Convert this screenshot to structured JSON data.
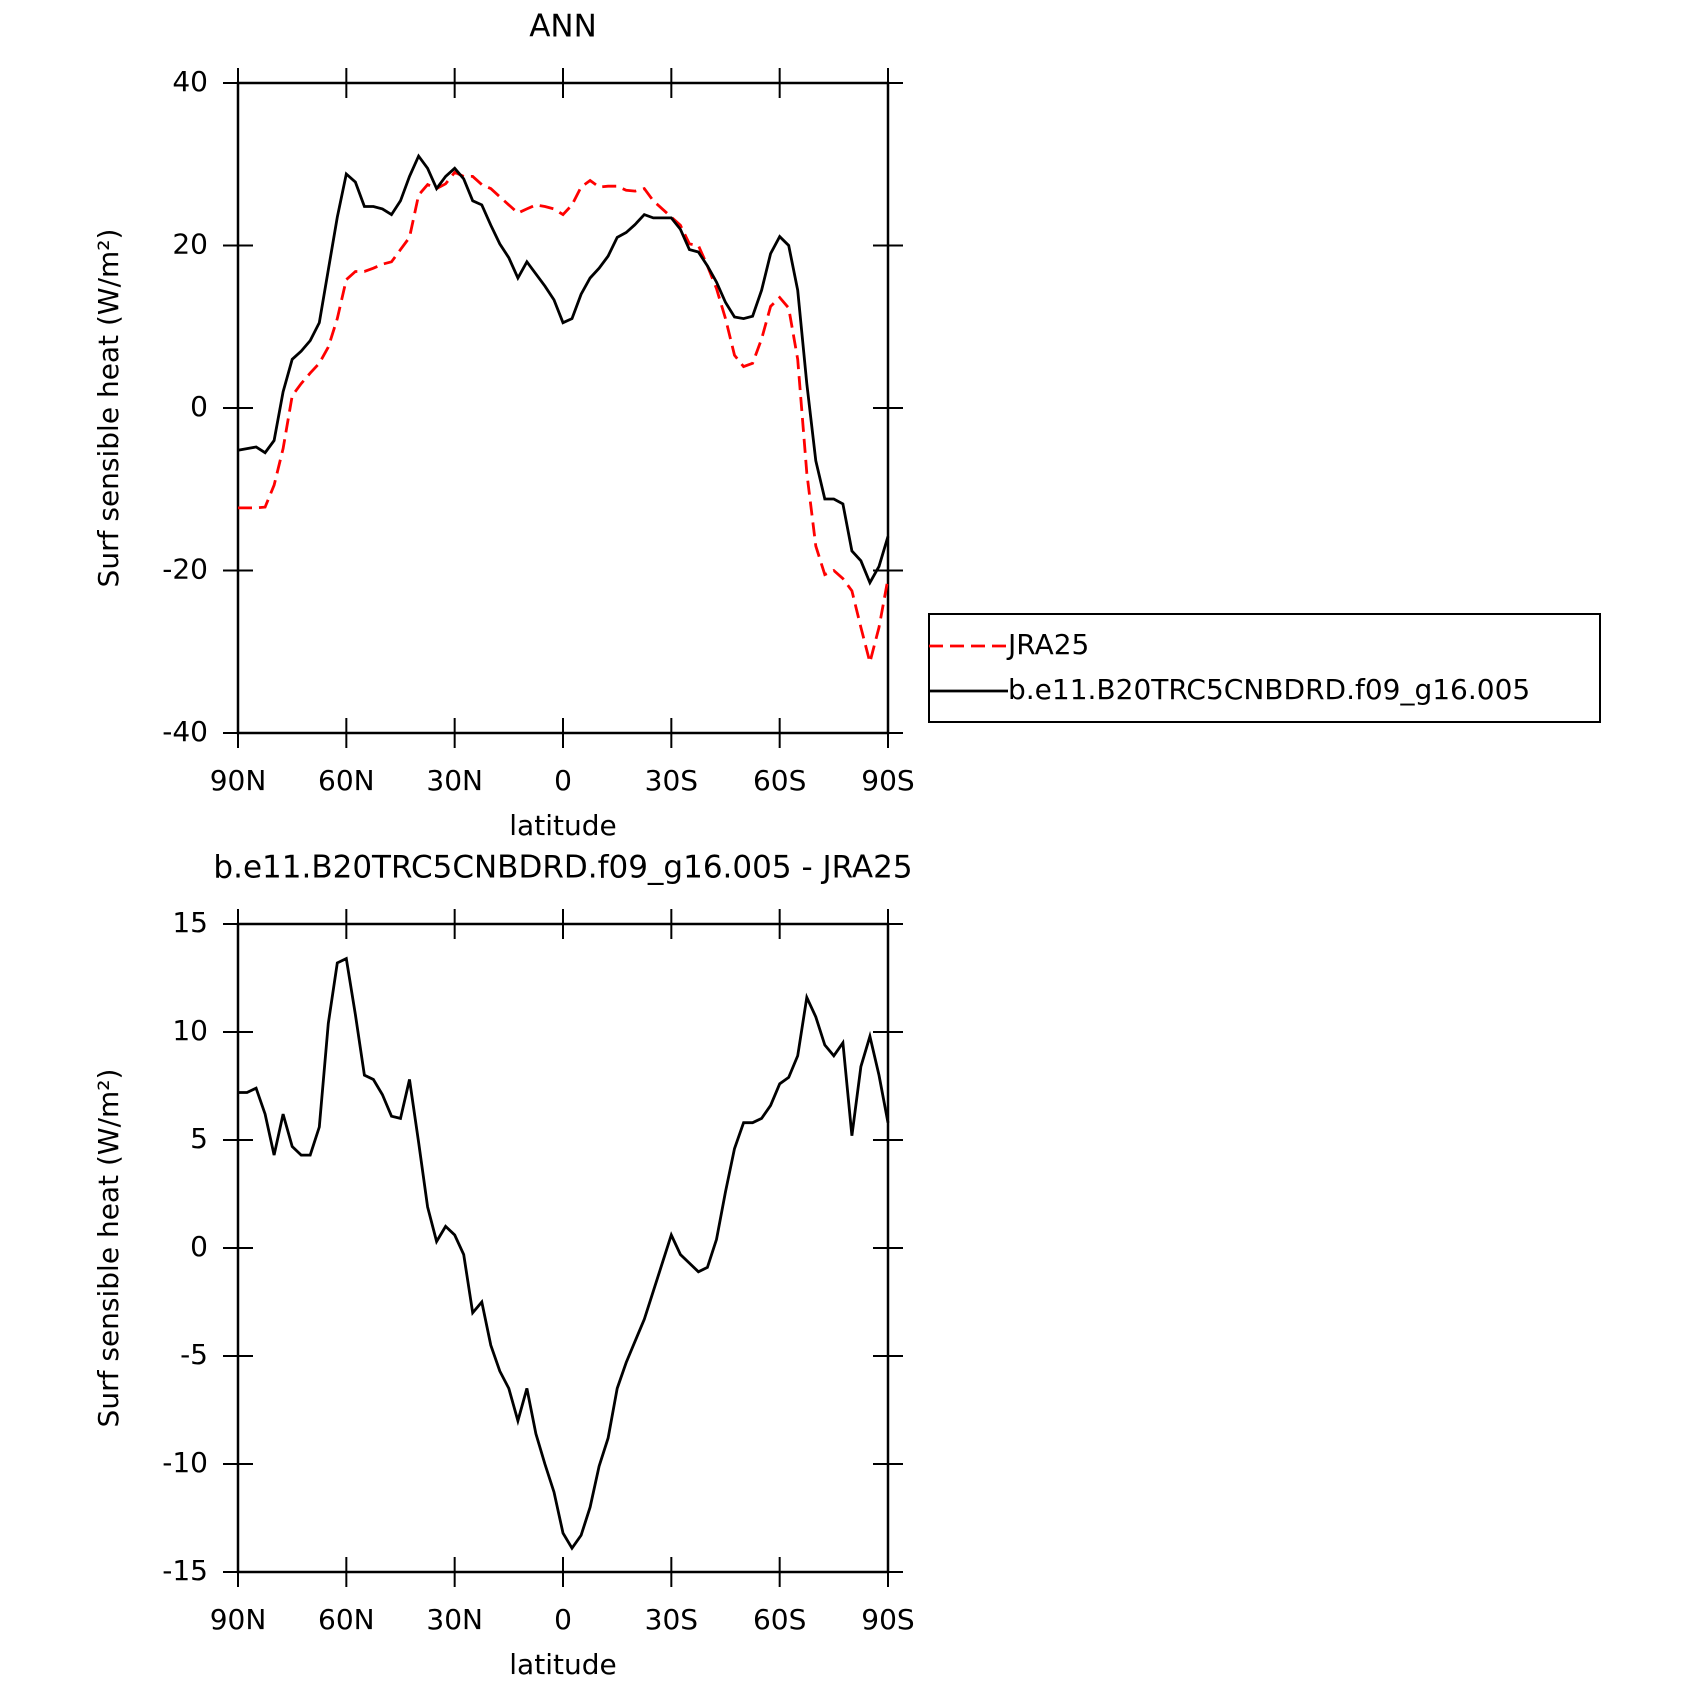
{
  "chart_data": [
    {
      "type": "line",
      "title": "ANN",
      "xlabel": "latitude",
      "ylabel": "Surf sensible heat (W/m²)",
      "x": [
        90,
        87.5,
        85,
        82.5,
        80,
        77.5,
        75,
        72.5,
        70,
        67.5,
        65,
        62.5,
        60,
        57.5,
        55,
        52.5,
        50,
        47.5,
        45,
        42.5,
        40,
        37.5,
        35,
        32.5,
        30,
        27.5,
        25,
        22.5,
        20,
        17.5,
        15,
        12.5,
        10,
        7.5,
        5,
        2.5,
        0,
        -2.5,
        -5,
        -7.5,
        -10,
        -12.5,
        -15,
        -17.5,
        -20,
        -22.5,
        -25,
        -27.5,
        -30,
        -32.5,
        -35,
        -37.5,
        -40,
        -42.5,
        -45,
        -47.5,
        -50,
        -52.5,
        -55,
        -57.5,
        -60,
        -62.5,
        -65,
        -67.5,
        -70,
        -72.5,
        -75,
        -77.5,
        -80,
        -82.5,
        -85,
        -87.5,
        -90
      ],
      "series": [
        {
          "name": "JRA25",
          "color": "#ff0000",
          "dashed": true,
          "values": [
            -12.3,
            -12.3,
            -12.3,
            -12.2,
            -9.5,
            -5,
            1.5,
            3,
            4.3,
            5.5,
            7.5,
            11,
            15.8,
            16.8,
            16.8,
            17.2,
            17.7,
            18,
            19.5,
            21,
            26.2,
            27.5,
            27,
            27.6,
            29,
            28.5,
            28.5,
            27.5,
            27,
            26,
            25,
            24,
            24.5,
            25,
            24.8,
            24.5,
            23.8,
            25,
            27.2,
            28,
            27.2,
            27.3,
            27.3,
            26.8,
            26.7,
            27,
            25.5,
            24.5,
            23.5,
            22.5,
            20.2,
            20,
            17.5,
            14.7,
            11,
            6.5,
            5.1,
            5.5,
            8.5,
            12.5,
            13.6,
            12.3,
            6,
            -8,
            -17,
            -20.5,
            -20,
            -21,
            -22.5,
            -27,
            -31.3,
            -27,
            -21
          ]
        },
        {
          "name": "b.e11.B20TRC5CNBDRD.f09_g16.005",
          "color": "#000000",
          "dashed": false,
          "values": [
            -5.2,
            -5,
            -4.8,
            -5.5,
            -4,
            2,
            6,
            7,
            8.3,
            10.5,
            17,
            23.5,
            28.8,
            27.8,
            24.8,
            24.8,
            24.5,
            23.8,
            25.5,
            28.5,
            31,
            29.5,
            27,
            28.5,
            29.5,
            28.2,
            25.5,
            25,
            22.5,
            20.2,
            18.5,
            16,
            18,
            16.5,
            15,
            13.3,
            10.5,
            11,
            14,
            16,
            17.2,
            18.7,
            21,
            21.6,
            22.6,
            23.8,
            23.4,
            23.4,
            23.4,
            22,
            19.5,
            19.2,
            17.5,
            15.5,
            13,
            11.2,
            11,
            11.3,
            14.5,
            19,
            21.1,
            20,
            14.5,
            3,
            -6.5,
            -11.2,
            -11.2,
            -11.8,
            -17.6,
            -18.8,
            -21.5,
            -19.5,
            -15.8
          ]
        }
      ],
      "xlim": [
        90,
        -90
      ],
      "ylim": [
        -40,
        40
      ],
      "xticks": [
        {
          "value": 90,
          "label": "90N"
        },
        {
          "value": 60,
          "label": "60N"
        },
        {
          "value": 30,
          "label": "30N"
        },
        0,
        {
          "value": -30,
          "label": "30S"
        },
        {
          "value": -60,
          "label": "60S"
        },
        {
          "value": -90,
          "label": "90S"
        }
      ],
      "yticks": [
        -40,
        -20,
        0,
        20,
        40
      ],
      "legend": "outside-right"
    },
    {
      "type": "line",
      "title": "b.e11.B20TRC5CNBDRD.f09_g16.005 - JRA25",
      "xlabel": "latitude",
      "ylabel": "Surf sensible heat (W/m²)",
      "x": [
        90,
        87.5,
        85,
        82.5,
        80,
        77.5,
        75,
        72.5,
        70,
        67.5,
        65,
        62.5,
        60,
        57.5,
        55,
        52.5,
        50,
        47.5,
        45,
        42.5,
        40,
        37.5,
        35,
        32.5,
        30,
        27.5,
        25,
        22.5,
        20,
        17.5,
        15,
        12.5,
        10,
        7.5,
        5,
        2.5,
        0,
        -2.5,
        -5,
        -7.5,
        -10,
        -12.5,
        -15,
        -17.5,
        -20,
        -22.5,
        -25,
        -27.5,
        -30,
        -32.5,
        -35,
        -37.5,
        -40,
        -42.5,
        -45,
        -47.5,
        -50,
        -52.5,
        -55,
        -57.5,
        -60,
        -62.5,
        -65,
        -67.5,
        -70,
        -72.5,
        -75,
        -77.5,
        -80,
        -82.5,
        -85,
        -87.5,
        -90
      ],
      "series": [
        {
          "color": "#000000",
          "dashed": false,
          "values": [
            7.2,
            7.2,
            7.4,
            6.2,
            4.3,
            6.2,
            4.7,
            4.3,
            4.3,
            5.6,
            10.4,
            13.2,
            13.4,
            10.8,
            8,
            7.8,
            7.1,
            6.1,
            6,
            7.8,
            4.9,
            1.9,
            0.3,
            1,
            0.6,
            -0.3,
            -3,
            -2.5,
            -4.5,
            -5.7,
            -6.5,
            -8,
            -6.5,
            -8.6,
            -10,
            -11.3,
            -13.2,
            -13.9,
            -13.3,
            -12,
            -10.1,
            -8.8,
            -6.5,
            -5.3,
            -4.3,
            -3.3,
            -2,
            -0.7,
            0.6,
            -0.3,
            -0.7,
            -1.1,
            -0.9,
            0.4,
            2.6,
            4.6,
            5.8,
            5.8,
            6,
            6.6,
            7.6,
            7.9,
            8.9,
            11.6,
            10.7,
            9.4,
            8.9,
            9.5,
            5.2,
            8.4,
            9.8,
            8,
            5.8
          ]
        }
      ],
      "xlim": [
        90,
        -90
      ],
      "ylim": [
        -15,
        15
      ],
      "xticks": [
        {
          "value": 90,
          "label": "90N"
        },
        {
          "value": 60,
          "label": "60N"
        },
        {
          "value": 30,
          "label": "30N"
        },
        0,
        {
          "value": -30,
          "label": "30S"
        },
        {
          "value": -60,
          "label": "60S"
        },
        {
          "value": -90,
          "label": "90S"
        }
      ],
      "yticks": [
        -15,
        -10,
        -5,
        0,
        5,
        10,
        15
      ]
    }
  ]
}
